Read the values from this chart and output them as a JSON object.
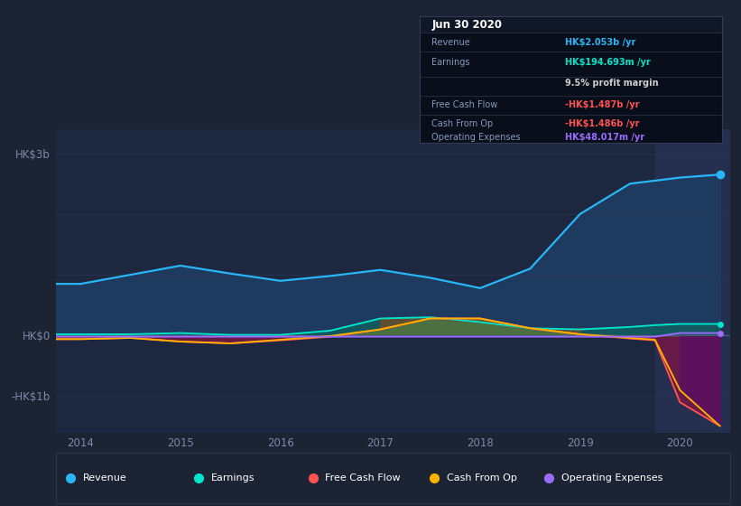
{
  "bg_color": "#1c2333",
  "chart_bg": "#1e2740",
  "panel_dark": "#151d2e",
  "years": [
    2013.75,
    2014.0,
    2014.5,
    2015.0,
    2015.5,
    2016.0,
    2016.5,
    2017.0,
    2017.5,
    2018.0,
    2018.5,
    2019.0,
    2019.5,
    2019.75,
    2020.0,
    2020.4
  ],
  "revenue": [
    0.85,
    0.85,
    1.0,
    1.15,
    1.02,
    0.9,
    0.98,
    1.08,
    0.95,
    0.78,
    1.1,
    2.0,
    2.5,
    2.55,
    2.6,
    2.65
  ],
  "earnings": [
    0.02,
    0.02,
    0.02,
    0.04,
    0.01,
    0.01,
    0.08,
    0.28,
    0.3,
    0.22,
    0.12,
    0.1,
    0.14,
    0.17,
    0.19,
    0.19
  ],
  "free_cash_flow": [
    -0.06,
    -0.06,
    -0.04,
    -0.1,
    -0.13,
    -0.08,
    -0.02,
    0.1,
    0.28,
    0.28,
    0.12,
    0.02,
    -0.05,
    -0.08,
    -1.1,
    -1.49
  ],
  "cash_from_op": [
    -0.06,
    -0.06,
    -0.04,
    -0.1,
    -0.13,
    -0.07,
    -0.01,
    0.1,
    0.28,
    0.28,
    0.12,
    0.02,
    -0.04,
    -0.07,
    -0.9,
    -1.49
  ],
  "op_expenses": [
    -0.02,
    -0.02,
    -0.02,
    -0.02,
    -0.02,
    -0.02,
    -0.02,
    -0.02,
    -0.02,
    -0.02,
    -0.02,
    -0.02,
    -0.02,
    -0.02,
    0.04,
    0.04
  ],
  "revenue_color": "#29b6f6",
  "earnings_color": "#00e5cc",
  "fcf_color": "#ff5252",
  "cfo_color": "#ffb300",
  "opex_color": "#9c6bff",
  "grid_color": "#2a3550",
  "tick_color": "#7a8aaa",
  "highlight_x": 2019.75,
  "xlim": [
    2013.75,
    2020.5
  ],
  "ylim": [
    -1.6,
    3.4
  ],
  "legend_items": [
    {
      "label": "Revenue",
      "color": "#29b6f6"
    },
    {
      "label": "Earnings",
      "color": "#00e5cc"
    },
    {
      "label": "Free Cash Flow",
      "color": "#ff5252"
    },
    {
      "label": "Cash From Op",
      "color": "#ffb300"
    },
    {
      "label": "Operating Expenses",
      "color": "#9c6bff"
    }
  ]
}
